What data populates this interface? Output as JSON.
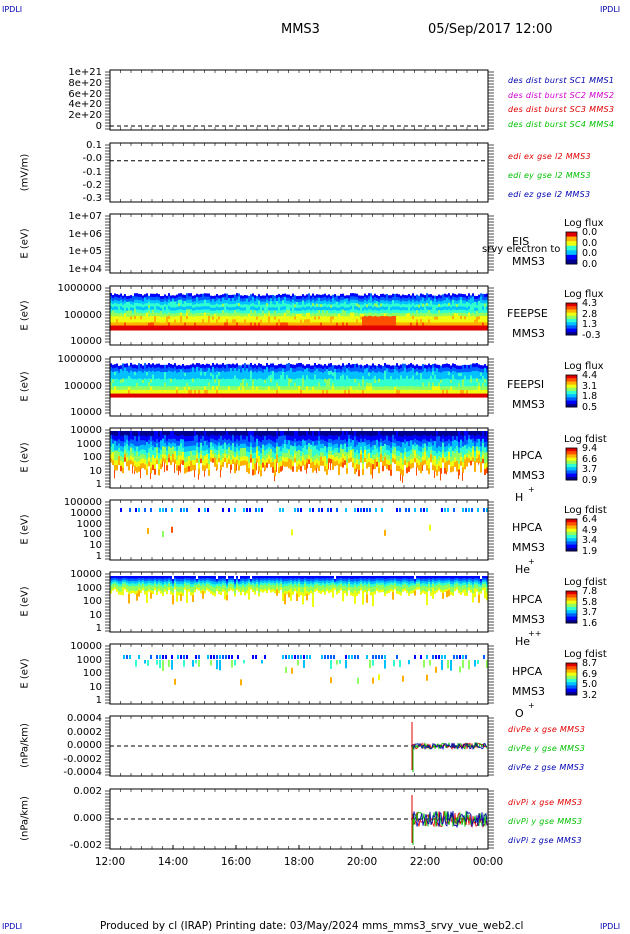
{
  "corners": {
    "tl": "IPDLI",
    "tr": "IPDLI",
    "bl": "IPDLI",
    "br": "IPDLI"
  },
  "header": {
    "spacecraft": "MMS3",
    "date": "05/Sep/2017 12:00"
  },
  "footer": {
    "text": "Produced by cl (IRAP)   Printing date: 03/May/2024   mms_mms3_srvy_vue_web2.cl"
  },
  "colors": {
    "frame": "#000000",
    "red": "#e00000",
    "green": "#00c000",
    "blue": "#0000b0",
    "magenta": "#d000d0"
  },
  "chart_data": [
    {
      "id": "des_dist",
      "type": "line",
      "ylabel": "",
      "yticks": [
        "1e+21",
        "8e+20",
        "6e+20",
        "4e+20",
        "2e+20",
        "0"
      ],
      "zero_line": true,
      "series": [
        {
          "name": "des dist burst SC1 MMS1",
          "color": "#0000b0"
        },
        {
          "name": "des dist burst SC2 MMS2",
          "color": "#d000d0"
        },
        {
          "name": "des dist burst SC3 MMS3",
          "color": "#e00000"
        },
        {
          "name": "des dist burst SC4 MMS4",
          "color": "#00c000"
        }
      ]
    },
    {
      "id": "edi",
      "type": "line",
      "ylabel": "(mV/m)",
      "yticks": [
        "0.1",
        "-0.0",
        "-0.1",
        "-0.2",
        "-0.3"
      ],
      "zero_line": true,
      "series": [
        {
          "name": "edi ex gse l2 MMS3",
          "color": "#e00000"
        },
        {
          "name": "edi ey gse l2 MMS3",
          "color": "#00c000"
        },
        {
          "name": "edi ez gse l2 MMS3",
          "color": "#0000b0"
        }
      ]
    },
    {
      "id": "eis",
      "type": "heatmap",
      "ylabel": "E (eV)",
      "yticks": [
        "1e+07",
        "1e+06",
        "1e+05",
        "1e+04"
      ],
      "instrument": [
        "EIS",
        "MMS3"
      ],
      "overlay_text": "srvy electron to",
      "colorbar": {
        "title": "Log flux",
        "ticks": [
          "0.0",
          "0.0",
          "0.0",
          "0.0"
        ]
      }
    },
    {
      "id": "feepse",
      "type": "heatmap",
      "ylabel": "E (eV)",
      "yticks": [
        "1000000",
        "100000",
        "10000"
      ],
      "instrument": [
        "FEEPSE",
        "MMS3"
      ],
      "colorbar": {
        "title": "Log flux",
        "ticks": [
          "4.3",
          "2.8",
          "1.3",
          "-0.3"
        ]
      }
    },
    {
      "id": "feepsi",
      "type": "heatmap",
      "ylabel": "E (eV)",
      "yticks": [
        "1000000",
        "100000",
        "10000"
      ],
      "instrument": [
        "FEEPSI",
        "MMS3"
      ],
      "colorbar": {
        "title": "Log flux",
        "ticks": [
          "4.4",
          "3.1",
          "1.8",
          "0.5"
        ]
      }
    },
    {
      "id": "hpca_h",
      "type": "heatmap",
      "ylabel": "E (eV)",
      "yticks": [
        "10000",
        "1000",
        "100",
        "10",
        "1"
      ],
      "instrument": [
        "HPCA",
        "MMS3"
      ],
      "species": "H",
      "charge": "+",
      "colorbar": {
        "title": "Log fdist",
        "ticks": [
          "9.4",
          "6.6",
          "3.7",
          "0.9"
        ]
      }
    },
    {
      "id": "hpca_he",
      "type": "heatmap",
      "ylabel": "E (eV)",
      "yticks": [
        "100000",
        "10000",
        "1000",
        "100",
        "10",
        "1"
      ],
      "instrument": [
        "HPCA",
        "MMS3"
      ],
      "species": "He",
      "charge": "+",
      "colorbar": {
        "title": "Log fdist",
        "ticks": [
          "6.4",
          "4.9",
          "3.4",
          "1.9"
        ]
      }
    },
    {
      "id": "hpca_hepp",
      "type": "heatmap",
      "ylabel": "E (eV)",
      "yticks": [
        "10000",
        "1000",
        "100",
        "10",
        "1"
      ],
      "instrument": [
        "HPCA",
        "MMS3"
      ],
      "species": "He",
      "charge": "++",
      "colorbar": {
        "title": "Log fdist",
        "ticks": [
          "7.8",
          "5.8",
          "3.7",
          "1.6"
        ]
      }
    },
    {
      "id": "hpca_o",
      "type": "heatmap",
      "ylabel": "E (eV)",
      "yticks": [
        "10000",
        "1000",
        "100",
        "10",
        "1"
      ],
      "instrument": [
        "HPCA",
        "MMS3"
      ],
      "species": "O",
      "charge": "+",
      "colorbar": {
        "title": "Log fdist",
        "ticks": [
          "8.7",
          "6.9",
          "5.0",
          "3.2"
        ]
      }
    },
    {
      "id": "divpe",
      "type": "line",
      "ylabel": "(nPa/km)",
      "yticks": [
        "0.0004",
        "0.0002",
        "0.0000",
        "-0.0002",
        "-0.0004"
      ],
      "zero_line": true,
      "series": [
        {
          "name": "divPe x gse MMS3",
          "color": "#e00000"
        },
        {
          "name": "divPe y gse MMS3",
          "color": "#00c000"
        },
        {
          "name": "divPe z gse MMS3",
          "color": "#0000b0"
        }
      ]
    },
    {
      "id": "divpi",
      "type": "line",
      "ylabel": "(nPa/km)",
      "yticks": [
        "0.002",
        "0.000",
        "-0.002"
      ],
      "zero_line": true,
      "series": [
        {
          "name": "divPi x gse MMS3",
          "color": "#e00000"
        },
        {
          "name": "divPi y gse MMS3",
          "color": "#00c000"
        },
        {
          "name": "divPi z gse MMS3",
          "color": "#0000b0"
        }
      ]
    }
  ],
  "xaxis": {
    "ticks": [
      "12:00",
      "14:00",
      "16:00",
      "18:00",
      "20:00",
      "22:00",
      "00:00"
    ]
  }
}
